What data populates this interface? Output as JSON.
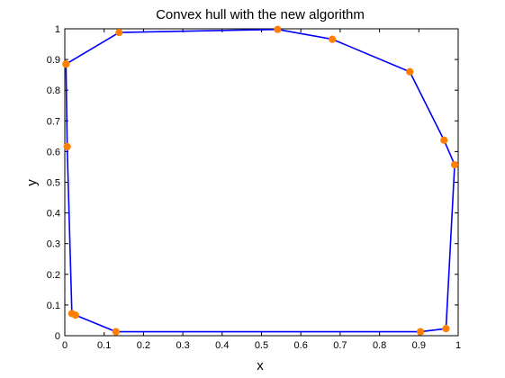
{
  "chart_data": {
    "type": "line",
    "title": "Convex hull with the new algorithm",
    "xlabel": "x",
    "ylabel": "y",
    "xlim": [
      0,
      1
    ],
    "ylim": [
      0,
      1
    ],
    "xticks": [
      0,
      0.1,
      0.2,
      0.3,
      0.4,
      0.5,
      0.6,
      0.7,
      0.8,
      0.9,
      1
    ],
    "yticks": [
      0,
      0.1,
      0.2,
      0.3,
      0.4,
      0.5,
      0.6,
      0.7,
      0.8,
      0.9,
      1
    ],
    "xtick_labels": [
      "0",
      "0.1",
      "0.2",
      "0.3",
      "0.4",
      "0.5",
      "0.6",
      "0.7",
      "0.8",
      "0.9",
      "1"
    ],
    "ytick_labels": [
      "0",
      "0.1",
      "0.2",
      "0.3",
      "0.4",
      "0.5",
      "0.6",
      "0.7",
      "0.8",
      "0.9",
      "1"
    ],
    "grid": false,
    "line_color": "#0000ff",
    "marker_color": "#ff8000",
    "hull_points": [
      {
        "x": 0.003,
        "y": 0.885
      },
      {
        "x": 0.138,
        "y": 0.988
      },
      {
        "x": 0.541,
        "y": 0.998
      },
      {
        "x": 0.68,
        "y": 0.966
      },
      {
        "x": 0.877,
        "y": 0.86
      },
      {
        "x": 0.964,
        "y": 0.637
      },
      {
        "x": 0.991,
        "y": 0.557
      },
      {
        "x": 0.969,
        "y": 0.023
      },
      {
        "x": 0.904,
        "y": 0.013
      },
      {
        "x": 0.13,
        "y": 0.013
      },
      {
        "x": 0.027,
        "y": 0.067
      },
      {
        "x": 0.018,
        "y": 0.072
      },
      {
        "x": 0.006,
        "y": 0.616
      },
      {
        "x": 0.003,
        "y": 0.885
      }
    ]
  }
}
